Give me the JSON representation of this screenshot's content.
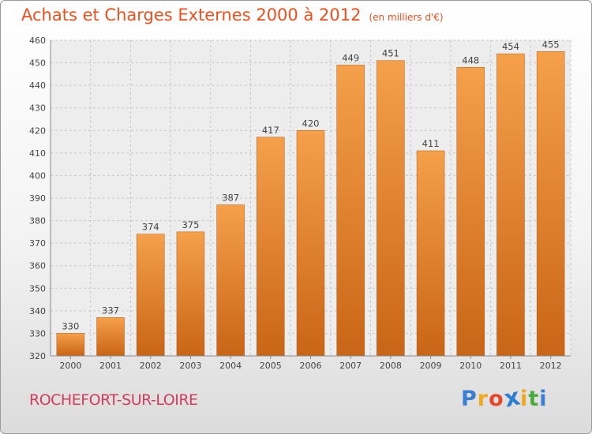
{
  "chart_data": {
    "type": "bar",
    "title": "Achats et Charges Externes 2000 à 2012",
    "unit": "(en milliers d'€)",
    "categories": [
      "2000",
      "2001",
      "2002",
      "2003",
      "2004",
      "2005",
      "2006",
      "2007",
      "2008",
      "2009",
      "2010",
      "2011",
      "2012"
    ],
    "values": [
      330,
      337,
      374,
      375,
      387,
      417,
      420,
      449,
      451,
      411,
      448,
      454,
      455
    ],
    "value_labels": [
      "330",
      "337",
      "374",
      "375",
      "387",
      "417",
      "420",
      "449",
      "451",
      "411",
      "448",
      "454",
      "455"
    ],
    "ylim": [
      320,
      460
    ],
    "yticks": [
      "320",
      "330",
      "340",
      "350",
      "360",
      "370",
      "380",
      "390",
      "400",
      "410",
      "420",
      "430",
      "440",
      "450",
      "460"
    ],
    "grid": true,
    "bar_color_top": "#f5a04a",
    "bar_color_bottom": "#c96516"
  },
  "location": "ROCHEFORT-SUR-LOIRE",
  "logo": {
    "letters": [
      "P",
      "r",
      "o",
      "x",
      "i",
      "t",
      "i"
    ],
    "colors": [
      "#3a7fd1",
      "#f2a81d",
      "#e8462a",
      "#2f7fd0",
      "#f0a81c",
      "#4aaa3c",
      "#3a7fd1"
    ]
  }
}
